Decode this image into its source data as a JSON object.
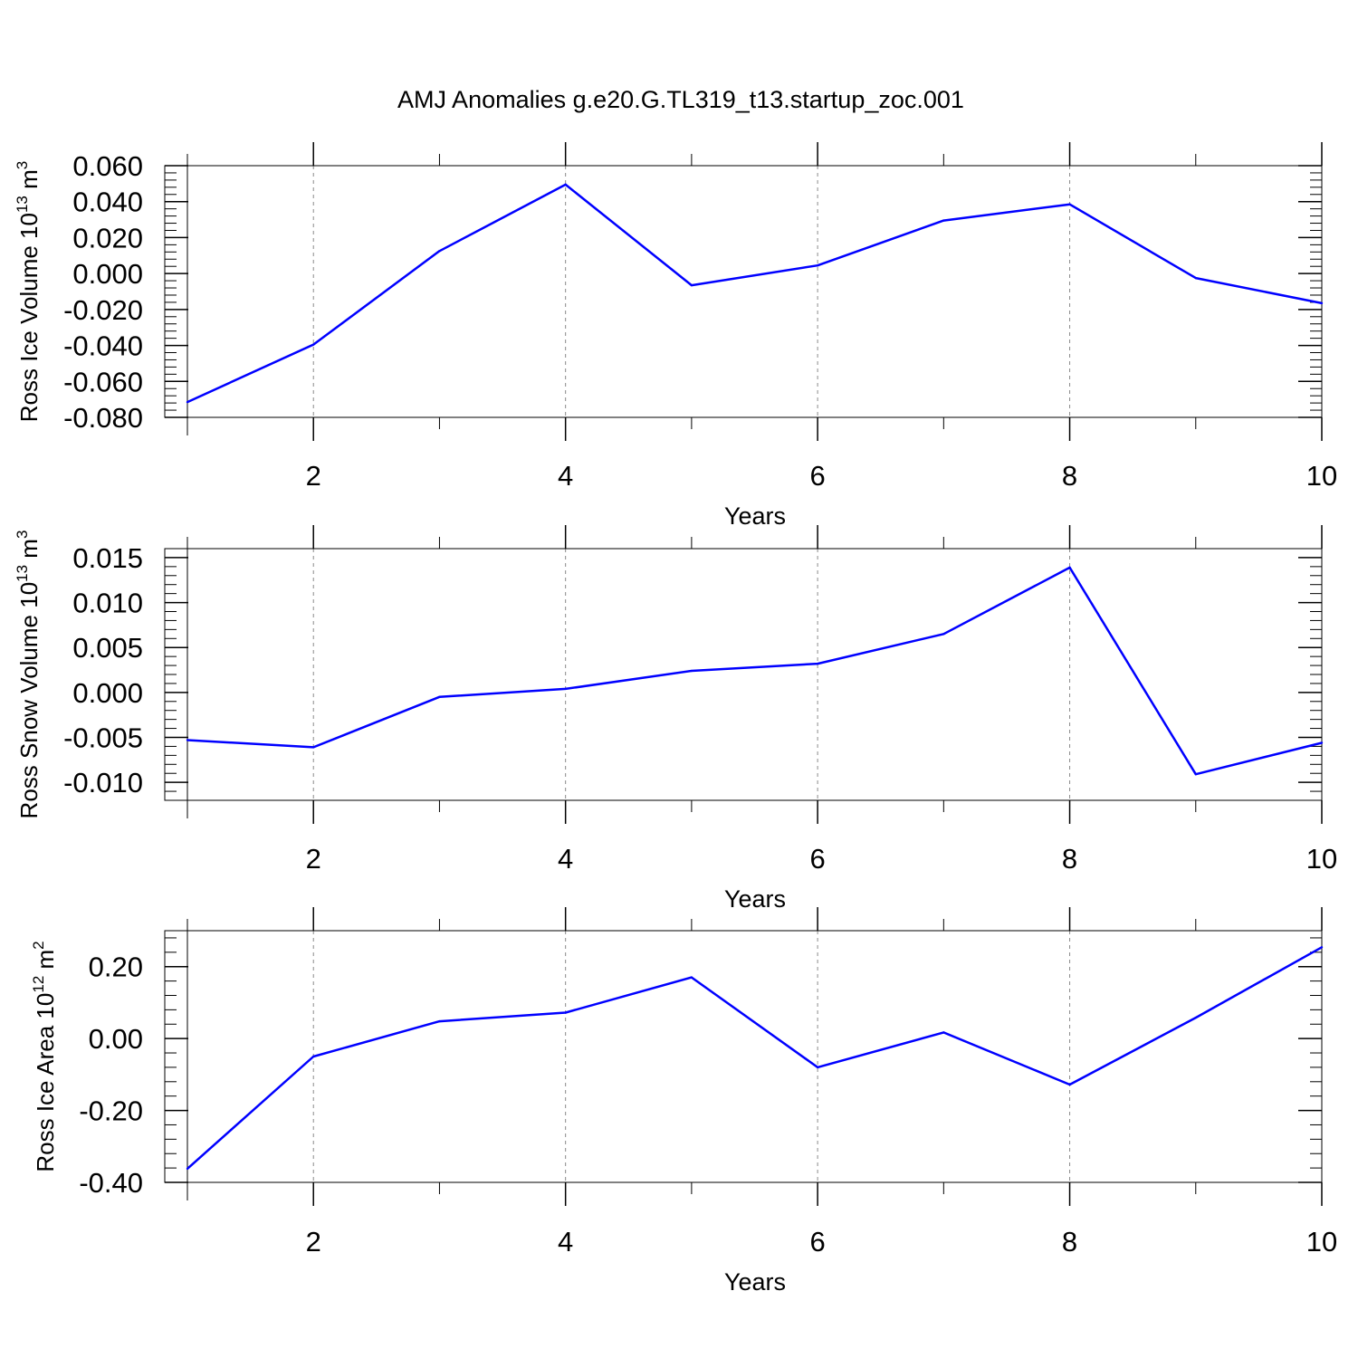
{
  "title": "AMJ Anomalies g.e20.G.TL319_t13.startup_zoc.001",
  "line_color": "#0000ff",
  "chart_data": [
    {
      "type": "line",
      "ylabel_main": "Ross Ice Volume 10",
      "ylabel_exp": "13",
      "ylabel_unit": "m",
      "ylabel_unit_exp": "3",
      "xlabel": "Years",
      "xlim": [
        1,
        10
      ],
      "ylim": [
        -0.08,
        0.06
      ],
      "yticks": [
        -0.08,
        -0.06,
        -0.04,
        -0.02,
        0.0,
        0.02,
        0.04,
        0.06
      ],
      "ytick_labels": [
        "-0.080",
        "-0.060",
        "-0.040",
        "-0.020",
        "0.000",
        "0.020",
        "0.040",
        "0.060"
      ],
      "xticks": [
        2,
        4,
        6,
        8,
        10
      ],
      "xtick_labels": [
        "2",
        "4",
        "6",
        "8",
        "10"
      ],
      "grid": "x-dashed",
      "x": [
        1,
        2,
        3,
        4,
        5,
        6,
        7,
        8,
        9,
        10
      ],
      "values": [
        -0.0715,
        -0.0395,
        0.0125,
        0.0495,
        -0.0065,
        0.0045,
        0.0295,
        0.0385,
        -0.0025,
        -0.0165
      ]
    },
    {
      "type": "line",
      "ylabel_main": "Ross Snow Volume 10",
      "ylabel_exp": "13",
      "ylabel_unit": "m",
      "ylabel_unit_exp": "3",
      "xlabel": "Years",
      "xlim": [
        1,
        10
      ],
      "ylim": [
        -0.012,
        0.016
      ],
      "yticks": [
        -0.01,
        -0.005,
        0.0,
        0.005,
        0.01,
        0.015
      ],
      "ytick_labels": [
        "-0.010",
        "-0.005",
        "0.000",
        "0.005",
        "0.010",
        "0.015"
      ],
      "xticks": [
        2,
        4,
        6,
        8,
        10
      ],
      "xtick_labels": [
        "2",
        "4",
        "6",
        "8",
        "10"
      ],
      "grid": "x-dashed",
      "x": [
        1,
        2,
        3,
        4,
        5,
        6,
        7,
        8,
        9,
        10
      ],
      "values": [
        -0.0053,
        -0.0061,
        -0.0005,
        0.0004,
        0.0024,
        0.0032,
        0.0065,
        0.0139,
        -0.0091,
        -0.0056
      ]
    },
    {
      "type": "line",
      "ylabel_main": "Ross Ice Area 10",
      "ylabel_exp": "12",
      "ylabel_unit": "m",
      "ylabel_unit_exp": "2",
      "xlabel": "Years",
      "xlim": [
        1,
        10
      ],
      "ylim": [
        -0.4,
        0.3
      ],
      "yticks": [
        -0.4,
        -0.2,
        0.0,
        0.2
      ],
      "ytick_labels": [
        "-0.40",
        "-0.20",
        "0.00",
        "0.20"
      ],
      "xticks": [
        2,
        4,
        6,
        8,
        10
      ],
      "xtick_labels": [
        "2",
        "4",
        "6",
        "8",
        "10"
      ],
      "grid": "x-dashed",
      "x": [
        1,
        2,
        3,
        4,
        5,
        6,
        7,
        8,
        9,
        10
      ],
      "values": [
        -0.362,
        -0.05,
        0.048,
        0.072,
        0.17,
        -0.08,
        0.017,
        -0.128,
        0.058,
        0.254
      ]
    }
  ]
}
